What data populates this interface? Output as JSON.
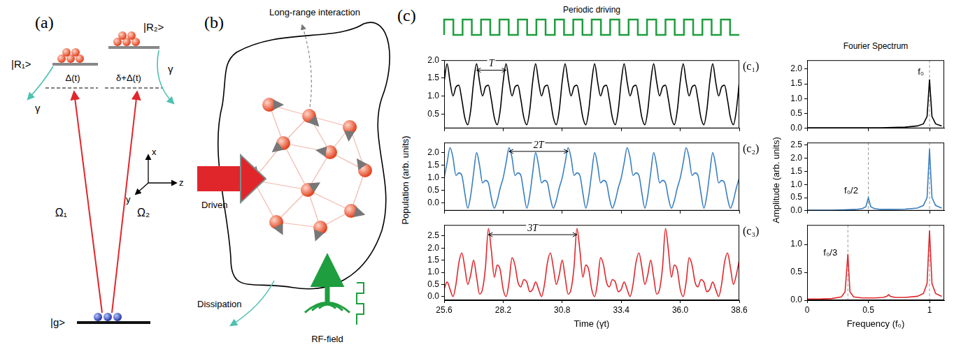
{
  "panel_a": {
    "label": "(a)",
    "ground": "|g>",
    "rydberg_1": "|R₁>",
    "rydberg_2": "|R₂>",
    "detuning_1": "Δ(t)",
    "detuning_2": "δ+Δ(t)",
    "rabi_1": "Ω₁",
    "rabi_2": "Ω₂",
    "decay": "γ",
    "axes": [
      "x",
      "y",
      "z"
    ]
  },
  "panel_b": {
    "label": "(b)",
    "interaction": "Long-range interaction",
    "drive": "Driven",
    "dissipation": "Dissipation",
    "rf": "RF-field"
  },
  "panel_c": {
    "label": "(c)",
    "drive_label": "Periodic driving",
    "spectrum_title": "Fourier Spectrum"
  },
  "chart_data": [
    {
      "type": "line",
      "title": "(c₁)",
      "color": "#000000",
      "grid": false,
      "tick_labels": "y",
      "x": [
        25.6,
        25.73,
        25.86,
        25.99,
        26.12,
        26.25,
        26.38,
        26.51,
        26.64,
        26.77,
        26.9,
        27.03,
        27.16,
        27.29,
        27.42,
        27.55,
        27.68,
        27.81,
        27.94,
        28.07,
        28.2,
        28.33,
        28.46,
        28.59,
        28.72,
        28.85,
        28.98,
        29.11,
        29.24,
        29.37,
        29.5,
        29.63,
        29.76,
        29.89,
        30.02,
        30.15,
        30.28,
        30.41,
        30.54,
        30.67,
        30.8,
        30.93,
        31.06,
        31.19,
        31.32,
        31.45,
        31.58,
        31.71,
        31.84,
        31.97,
        32.1,
        32.23,
        32.36,
        32.49,
        32.62,
        32.75,
        32.88,
        33.01,
        33.14,
        33.27,
        33.4,
        33.53,
        33.66,
        33.79,
        33.92,
        34.05,
        34.18,
        34.31,
        34.44,
        34.57,
        34.7,
        34.83,
        34.96,
        35.09,
        35.22,
        35.35,
        35.48,
        35.61,
        35.74,
        35.87,
        36.0,
        36.13,
        36.26,
        36.39,
        36.52,
        36.65,
        36.78,
        36.91,
        37.04,
        37.17,
        37.3,
        37.43,
        37.56,
        37.69,
        37.82,
        37.95,
        38.08,
        38.21,
        38.34,
        38.47,
        38.6
      ],
      "values": [
        1.4,
        1.9,
        1.4,
        1.0,
        1.25,
        1.3,
        0.9,
        0.4,
        0.2,
        0.6,
        1.4,
        1.9,
        1.4,
        1.0,
        1.25,
        1.3,
        0.9,
        0.4,
        0.2,
        0.6,
        1.4,
        1.9,
        1.4,
        1.0,
        1.25,
        1.3,
        0.9,
        0.4,
        0.2,
        0.6,
        1.4,
        1.9,
        1.4,
        1.0,
        1.25,
        1.3,
        0.9,
        0.4,
        0.2,
        0.6,
        1.4,
        1.9,
        1.4,
        1.0,
        1.25,
        1.3,
        0.9,
        0.4,
        0.2,
        0.6,
        1.4,
        1.9,
        1.4,
        1.0,
        1.25,
        1.3,
        0.9,
        0.4,
        0.2,
        0.6,
        1.4,
        1.9,
        1.4,
        1.0,
        1.25,
        1.3,
        0.9,
        0.4,
        0.2,
        0.6,
        1.4,
        1.9,
        1.4,
        1.0,
        1.25,
        1.3,
        0.9,
        0.4,
        0.2,
        0.6,
        1.4,
        1.9,
        1.4,
        1.0,
        1.25,
        1.3,
        0.9,
        0.4,
        0.2,
        0.6,
        1.4,
        1.9,
        1.4,
        1.0,
        1.25,
        1.3,
        0.9,
        0.4,
        0.2,
        0.6,
        1.4
      ],
      "xlim": [
        25.6,
        38.6
      ],
      "xticks": [
        25.6,
        28.2,
        30.8,
        33.4,
        {
          "value": 36,
          "label": "36.0"
        },
        38.6
      ],
      "ylim": [
        0.1,
        2.0
      ],
      "yticks": [
        0.5,
        {
          "value": 1,
          "label": "1.0"
        },
        1.5,
        {
          "value": 2,
          "label": "2.0"
        }
      ],
      "annotations": [
        {
          "text": "T",
          "x": [
            27.03,
            28.33
          ],
          "y": 1.72
        }
      ]
    },
    {
      "type": "line",
      "title": "(c₂)",
      "color": "#3a7fc0",
      "grid": false,
      "tick_labels": "y",
      "ylabel": "Population (arb. units)",
      "x": [
        25.6,
        25.73,
        25.86,
        25.99,
        26.12,
        26.25,
        26.38,
        26.51,
        26.64,
        26.77,
        26.9,
        27.03,
        27.16,
        27.29,
        27.42,
        27.55,
        27.68,
        27.81,
        27.94,
        28.07,
        28.2,
        28.33,
        28.46,
        28.59,
        28.72,
        28.85,
        28.98,
        29.11,
        29.24,
        29.37,
        29.5,
        29.63,
        29.76,
        29.89,
        30.02,
        30.15,
        30.28,
        30.41,
        30.54,
        30.67,
        30.8,
        30.93,
        31.06,
        31.19,
        31.32,
        31.45,
        31.58,
        31.71,
        31.84,
        31.97,
        32.1,
        32.23,
        32.36,
        32.49,
        32.62,
        32.75,
        32.88,
        33.01,
        33.14,
        33.27,
        33.4,
        33.53,
        33.66,
        33.79,
        33.92,
        34.05,
        34.18,
        34.31,
        34.44,
        34.57,
        34.7,
        34.83,
        34.96,
        35.09,
        35.22,
        35.35,
        35.48,
        35.61,
        35.74,
        35.87,
        36.0,
        36.13,
        36.26,
        36.39,
        36.52,
        36.65,
        36.78,
        36.91,
        37.04,
        37.17,
        37.3,
        37.43,
        37.56,
        37.69,
        37.82,
        37.95,
        38.08,
        38.21,
        38.34,
        38.47,
        38.6
      ],
      "values": [
        1.0,
        1.6,
        2.2,
        1.8,
        1.1,
        1.2,
        1.1,
        0.4,
        -0.2,
        0.3,
        1.2,
        2.0,
        1.5,
        0.8,
        0.9,
        0.8,
        0.2,
        -0.2,
        0.1,
        0.6,
        1.0,
        1.6,
        2.2,
        1.8,
        1.1,
        1.2,
        1.1,
        0.4,
        -0.2,
        0.3,
        1.2,
        2.0,
        1.5,
        0.8,
        0.9,
        0.8,
        0.2,
        -0.2,
        0.1,
        0.6,
        1.0,
        1.6,
        2.2,
        1.8,
        1.1,
        1.2,
        1.1,
        0.4,
        -0.2,
        0.3,
        1.2,
        2.0,
        1.5,
        0.8,
        0.9,
        0.8,
        0.2,
        -0.2,
        0.1,
        0.6,
        1.0,
        1.6,
        2.2,
        1.8,
        1.1,
        1.2,
        1.1,
        0.4,
        -0.2,
        0.3,
        1.2,
        2.0,
        1.5,
        0.8,
        0.9,
        0.8,
        0.2,
        -0.2,
        0.1,
        0.6,
        1.0,
        1.6,
        2.2,
        1.8,
        1.1,
        1.2,
        1.1,
        0.4,
        -0.2,
        0.3,
        1.2,
        2.0,
        1.5,
        0.8,
        0.9,
        0.8,
        0.2,
        -0.2,
        0.1,
        0.6,
        1.0
      ],
      "xlim": [
        25.6,
        38.6
      ],
      "xticks": [
        25.6,
        28.2,
        30.8,
        33.4,
        {
          "value": 36,
          "label": "36.0"
        },
        38.6
      ],
      "ylim": [
        -0.3,
        2.4
      ],
      "yticks": [
        {
          "value": 0,
          "label": "0.0"
        },
        0.5,
        {
          "value": 1,
          "label": "1.0"
        },
        1.5,
        {
          "value": 2,
          "label": "2.0"
        }
      ],
      "annotations": [
        {
          "text": "2T",
          "x": [
            28.46,
            31.06
          ],
          "y": 2.05
        }
      ]
    },
    {
      "type": "line",
      "title": "(c₃)",
      "color": "#e0262b",
      "grid": false,
      "xlabel": "Time (γt)",
      "x": [
        25.6,
        25.73,
        25.86,
        25.99,
        26.12,
        26.25,
        26.38,
        26.51,
        26.64,
        26.77,
        26.9,
        27.03,
        27.16,
        27.29,
        27.42,
        27.55,
        27.68,
        27.81,
        27.94,
        28.07,
        28.2,
        28.33,
        28.46,
        28.59,
        28.72,
        28.85,
        28.98,
        29.11,
        29.24,
        29.37,
        29.5,
        29.63,
        29.76,
        29.89,
        30.02,
        30.15,
        30.28,
        30.41,
        30.54,
        30.67,
        30.8,
        30.93,
        31.06,
        31.19,
        31.32,
        31.45,
        31.58,
        31.71,
        31.84,
        31.97,
        32.1,
        32.23,
        32.36,
        32.49,
        32.62,
        32.75,
        32.88,
        33.01,
        33.14,
        33.27,
        33.4,
        33.53,
        33.66,
        33.79,
        33.92,
        34.05,
        34.18,
        34.31,
        34.44,
        34.57,
        34.7,
        34.83,
        34.96,
        35.09,
        35.22,
        35.35,
        35.48,
        35.61,
        35.74,
        35.87,
        36.0,
        36.13,
        36.26,
        36.39,
        36.52,
        36.65,
        36.78,
        36.91,
        37.04,
        37.17,
        37.3,
        37.43,
        37.56,
        37.69,
        37.82,
        37.95,
        38.08,
        38.21,
        38.34,
        38.47,
        38.6
      ],
      "values": [
        0.3,
        0.6,
        0.3,
        0.0,
        0.5,
        1.4,
        1.8,
        1.2,
        0.5,
        0.9,
        1.5,
        0.8,
        0.1,
        0.3,
        1.2,
        2.8,
        1.9,
        0.8,
        1.3,
        1.1,
        0.3,
        0.0,
        0.6,
        1.6,
        1.3,
        0.6,
        0.4,
        0.7,
        0.6,
        0.2,
        0.3,
        0.6,
        0.3,
        0.0,
        0.5,
        1.4,
        1.8,
        1.2,
        0.5,
        0.9,
        1.5,
        0.8,
        0.1,
        0.3,
        1.2,
        2.8,
        1.9,
        0.8,
        1.3,
        1.1,
        0.3,
        0.0,
        0.6,
        1.6,
        1.3,
        0.6,
        0.4,
        0.7,
        0.6,
        0.2,
        0.3,
        0.6,
        0.3,
        0.0,
        0.5,
        1.4,
        1.8,
        1.2,
        0.5,
        0.9,
        1.5,
        0.8,
        0.1,
        0.3,
        1.2,
        2.8,
        1.9,
        0.8,
        1.3,
        1.1,
        0.3,
        0.0,
        0.6,
        1.6,
        1.3,
        0.6,
        0.4,
        0.7,
        0.6,
        0.2,
        0.3,
        0.6,
        0.3,
        0.0,
        0.5,
        1.4,
        1.8,
        1.2,
        0.5,
        0.9,
        1.5
      ],
      "xlim": [
        25.6,
        38.6
      ],
      "xticks": [
        25.6,
        28.2,
        30.8,
        33.4,
        {
          "value": 36,
          "label": "36.0"
        },
        38.6
      ],
      "ylim": [
        -0.15,
        2.95
      ],
      "yticks": [
        {
          "value": 0,
          "label": "0.0"
        },
        0.5,
        {
          "value": 1,
          "label": "1.0"
        },
        1.5,
        {
          "value": 2,
          "label": "2.0"
        },
        2.5
      ],
      "annotations": [
        {
          "text": "3T",
          "x": [
            27.55,
            31.45
          ],
          "y": 2.55
        }
      ]
    },
    {
      "type": "line",
      "color": "#000000",
      "grid": false,
      "tick_labels": "y",
      "x": [
        0,
        0.1,
        0.2,
        0.3,
        0.4,
        0.5,
        0.6,
        0.7,
        0.8,
        0.9,
        0.95,
        0.98,
        1.0,
        1.02,
        1.05,
        1.1
      ],
      "values": [
        0.02,
        0.02,
        0.02,
        0.02,
        0.02,
        0.02,
        0.02,
        0.03,
        0.04,
        0.08,
        0.15,
        0.4,
        1.65,
        0.4,
        0.15,
        0.08
      ],
      "xlim": [
        0,
        1.12
      ],
      "xticks": [
        0,
        0.5,
        1
      ],
      "ylim": [
        0,
        2.3
      ],
      "yticks": [
        {
          "value": 0,
          "label": "0.0"
        },
        0.5,
        {
          "value": 1,
          "label": "1.0"
        },
        1.5,
        {
          "value": 2,
          "label": "2.0"
        }
      ],
      "vlines": [
        1
      ],
      "annotations": [
        {
          "text": "f₀",
          "x": 0.93,
          "y": 1.9
        }
      ]
    },
    {
      "type": "line",
      "color": "#3a7fc0",
      "grid": false,
      "tick_labels": "y",
      "ylabel": "Amplitude (arb. units)",
      "x": [
        0,
        0.1,
        0.2,
        0.3,
        0.4,
        0.45,
        0.48,
        0.5,
        0.52,
        0.55,
        0.6,
        0.7,
        0.8,
        0.9,
        0.95,
        0.98,
        1.0,
        1.02,
        1.05,
        1.1
      ],
      "values": [
        0.02,
        0.02,
        0.02,
        0.03,
        0.05,
        0.08,
        0.15,
        0.5,
        0.15,
        0.08,
        0.05,
        0.05,
        0.06,
        0.1,
        0.2,
        0.5,
        2.35,
        0.5,
        0.2,
        0.1
      ],
      "xlim": [
        0,
        1.12
      ],
      "xticks": [
        0,
        0.5,
        1
      ],
      "ylim": [
        0,
        2.6
      ],
      "yticks": [
        {
          "value": 0,
          "label": "0.0"
        },
        0.5,
        {
          "value": 1,
          "label": "1.0"
        },
        1.5,
        {
          "value": 2,
          "label": "2.0"
        },
        2.5
      ],
      "vlines": [
        0.5,
        1
      ],
      "annotations": [
        {
          "text": "f₀/2",
          "x": 0.36,
          "y": 0.75
        }
      ]
    },
    {
      "type": "line",
      "color": "#e0262b",
      "grid": false,
      "xlabel": "Frequency (f₀)",
      "x": [
        0,
        0.1,
        0.2,
        0.28,
        0.31,
        0.333,
        0.35,
        0.38,
        0.45,
        0.55,
        0.62,
        0.65,
        0.667,
        0.68,
        0.72,
        0.8,
        0.9,
        0.95,
        0.98,
        1.0,
        1.02,
        1.05,
        1.1
      ],
      "values": [
        0.02,
        0.02,
        0.03,
        0.06,
        0.15,
        0.83,
        0.15,
        0.06,
        0.04,
        0.04,
        0.05,
        0.07,
        0.1,
        0.07,
        0.05,
        0.05,
        0.07,
        0.12,
        0.3,
        1.25,
        0.3,
        0.12,
        0.07
      ],
      "xlim": [
        0,
        1.12
      ],
      "xticks": [
        0,
        0.5,
        1
      ],
      "ylim": [
        0,
        1.35
      ],
      "yticks": [
        {
          "value": 0,
          "label": "0.0"
        },
        0.5,
        {
          "value": 1,
          "label": "1.0"
        }
      ],
      "vlines": [
        0.333,
        1
      ],
      "annotations": [
        {
          "text": "f₀/3",
          "x": 0.19,
          "y": 0.85
        }
      ]
    }
  ]
}
